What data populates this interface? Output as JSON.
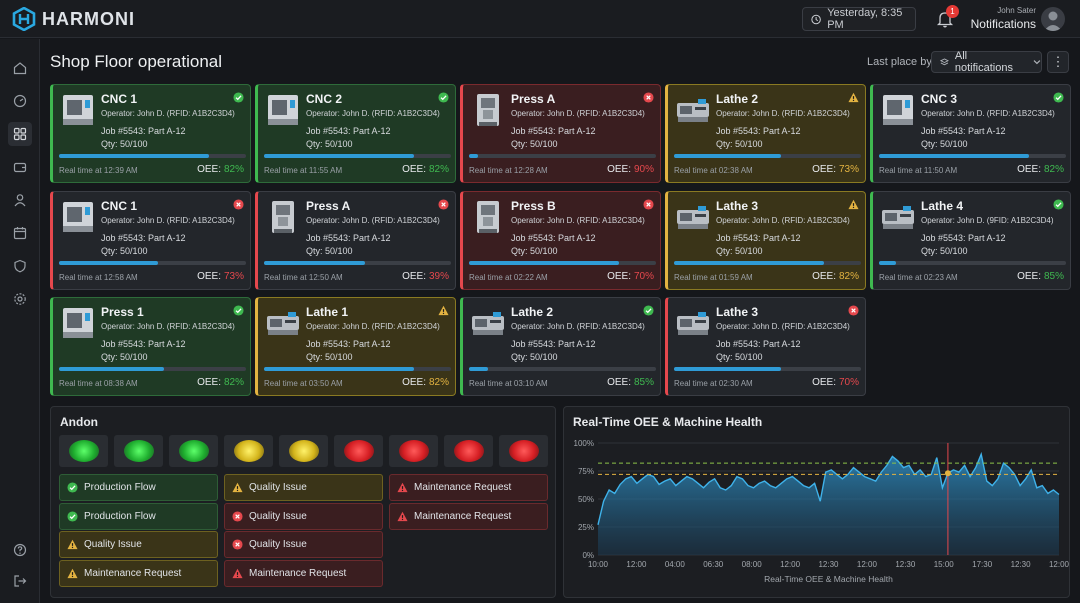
{
  "app": {
    "name": "HARMONI"
  },
  "header": {
    "date_label": "Yesterday, 8:35 PM",
    "notif_count": "1",
    "user_name": "John Sater",
    "notif_label": "Notifications"
  },
  "page": {
    "title": "Shop Floor operational",
    "filter_label": "Last place by",
    "filter_value": "All notifications"
  },
  "colors": {
    "green": "#3fb950",
    "red": "#e5484d",
    "yellow": "#e3b341",
    "accent": "#2f9bd6"
  },
  "machines": [
    {
      "name": "CNC 1",
      "operator": "Operator: John D. (RFID: A1B2C3D4)",
      "job": "Job #5543: Part A-12",
      "qty": "Qty: 50/100",
      "time": "Real time at 12:39 AM",
      "oee_label": "OEE:",
      "oee": "82%",
      "status": "green",
      "icon": "check-icon",
      "progress": 0.8,
      "kind": "cnc"
    },
    {
      "name": "CNC 2",
      "operator": "Operator: John D. (RFID: A1B2C3D4)",
      "job": "Job #5543: Part A-12",
      "qty": "Qty: 50/100",
      "time": "Real time at 11:55 AM",
      "oee_label": "OEE:",
      "oee": "82%",
      "status": "green",
      "icon": "check-icon",
      "progress": 0.8,
      "kind": "cnc"
    },
    {
      "name": "Press A",
      "operator": "Operator: John D. (RFID: A1B2C3D4)",
      "job": "Job #5543: Part A-12",
      "qty": "Qty: 50/100",
      "time": "Real time at 12:28 AM",
      "oee_label": "OEE:",
      "oee": "90%",
      "status": "red",
      "icon": "error-icon",
      "progress": 0.05,
      "kind": "press"
    },
    {
      "name": "Lathe 2",
      "operator": "Operator: John D. (RFID: A1B2C3D4)",
      "job": "Job #5543: Part A-12",
      "qty": "Qty: 50/100",
      "time": "Real time at 02:38 AM",
      "oee_label": "OEE:",
      "oee": "73%",
      "status": "yellow",
      "icon": "warning-icon",
      "progress": 0.57,
      "kind": "lathe"
    },
    {
      "name": "CNC 3",
      "operator": "Operator: John D. (RFID: A1B2C3D4)",
      "job": "Job #5543: Part A-12",
      "qty": "Qty: 50/100",
      "time": "Real time at 11:50 AM",
      "oee_label": "OEE:",
      "oee": "82%",
      "status": "dark-ok",
      "icon": "check-icon",
      "progress": 0.8,
      "kind": "cnc"
    },
    {
      "name": "CNC 1",
      "operator": "Operator: John D. (RFID: A1B2C3D4)",
      "job": "Job #5543: Part A-12",
      "qty": "Qty: 50/100",
      "time": "Real time at 12:58 AM",
      "oee_label": "OEE:",
      "oee": "73%",
      "status": "dark-bad",
      "icon": "error-icon",
      "progress": 0.53,
      "kind": "cnc"
    },
    {
      "name": "Press A",
      "operator": "Operator: John D. (RFID: A1B2C3D4)",
      "job": "Job #5543: Part A-12",
      "qty": "Qty: 50/100",
      "time": "Real time at 12:50 AM",
      "oee_label": "OEE:",
      "oee": "39%",
      "status": "dark-bad",
      "icon": "error-icon",
      "progress": 0.54,
      "kind": "press"
    },
    {
      "name": "Press B",
      "operator": "Operator: John D. (RFID: A1B2C3D4)",
      "job": "Job #5543: Part A-12",
      "qty": "Qty: 50/100",
      "time": "Real time at 02:22 AM",
      "oee_label": "OEE:",
      "oee": "70%",
      "status": "red",
      "icon": "error-icon",
      "progress": 0.8,
      "kind": "press"
    },
    {
      "name": "Lathe 3",
      "operator": "Operator: John D. (RFID: A1B2C3D4)",
      "job": "Job #5543: Part A-12",
      "qty": "Qty: 50/100",
      "time": "Real time at 01:59 AM",
      "oee_label": "OEE:",
      "oee": "82%",
      "status": "yellow",
      "icon": "warning-icon",
      "progress": 0.8,
      "kind": "lathe"
    },
    {
      "name": "Lathe 4",
      "operator": "Operator: John D. (9FID: A1B2C3D4)",
      "job": "Job #5543: Part A-12",
      "qty": "Qty: 50/100",
      "time": "Real time at 02:23 AM",
      "oee_label": "OEE:",
      "oee": "85%",
      "status": "dark-ok",
      "icon": "check-icon",
      "progress": 0.09,
      "kind": "lathe"
    },
    {
      "name": "Press 1",
      "operator": "Operator: John D. (RFID: A1B2C3D4)",
      "job": "Job #5543: Part A-12",
      "qty": "Qty: 50/100",
      "time": "Real time at 08:38 AM",
      "oee_label": "OEE:",
      "oee": "82%",
      "status": "green",
      "icon": "check-icon",
      "progress": 0.56,
      "kind": "cnc"
    },
    {
      "name": "Lathe 1",
      "operator": "Operator: John D. (RFID: A1B2C3D4)",
      "job": "Job #5543: Part A-12",
      "qty": "Qty: 50/100",
      "time": "Real time at 03:50 AM",
      "oee_label": "OEE:",
      "oee": "82%",
      "status": "yellow",
      "icon": "warning-icon",
      "progress": 0.8,
      "kind": "lathe"
    },
    {
      "name": "Lathe 2",
      "operator": "Operator: John D. (RFID: A1B2C3D4)",
      "job": "Job #5543: Part A-12",
      "qty": "Qty: 50/100",
      "time": "Real time at 03:10 AM",
      "oee_label": "OEE:",
      "oee": "85%",
      "status": "dark-ok",
      "icon": "check-icon",
      "progress": 0.1,
      "kind": "lathe"
    },
    {
      "name": "Lathe 3",
      "operator": "Operator: John D. (RFID: A1B2C3D4)",
      "job": "Job #5543: Part A-12",
      "qty": "Qty: 50/100",
      "time": "Real time at 02:30 AM",
      "oee_label": "OEE:",
      "oee": "70%",
      "status": "dark-bad",
      "icon": "error-icon",
      "progress": 0.57,
      "kind": "lathe"
    }
  ],
  "andon": {
    "title": "Andon",
    "lamps": [
      "green",
      "green",
      "green",
      "yellow",
      "yellow",
      "red",
      "red",
      "red",
      "red"
    ],
    "columns": [
      [
        {
          "label": "Production Flow",
          "status": "green",
          "icon": "check-circle-icon"
        },
        {
          "label": "Production Flow",
          "status": "green",
          "icon": "check-circle-icon"
        },
        {
          "label": "Quality Issue",
          "status": "yellow",
          "icon": "warning-icon"
        },
        {
          "label": "Maintenance Request",
          "status": "yellow",
          "icon": "warning-icon"
        }
      ],
      [
        {
          "label": "Quality Issue",
          "status": "yellow",
          "icon": "warning-icon"
        },
        {
          "label": "Quality Issue",
          "status": "red",
          "icon": "error-icon"
        },
        {
          "label": "Quality Issue",
          "status": "red",
          "icon": "error-icon"
        },
        {
          "label": "Maintenance Request",
          "status": "red",
          "icon": "alert-triangle-icon"
        }
      ],
      [
        {
          "label": "Maintenance Request",
          "status": "red",
          "icon": "alert-triangle-icon"
        },
        {
          "label": "Maintenance Request",
          "status": "red",
          "icon": "alert-triangle-icon"
        }
      ]
    ]
  },
  "chart_data": {
    "type": "area",
    "title": "Real-Time OEE & Machine Health",
    "xlabel": "Real-Time OEE & Machine Health",
    "ylabel": "",
    "x_ticks": [
      "10:00",
      "12:00",
      "04:00",
      "06:30",
      "08:00",
      "12:00",
      "12:30",
      "12:00",
      "12:30",
      "15:00",
      "17:30",
      "12:30",
      "12:00"
    ],
    "y_ticks": [
      "0%",
      "25%",
      "50%",
      "75%",
      "100%"
    ],
    "ylim": [
      0,
      100
    ],
    "reference_lines": [
      82,
      72
    ],
    "marker_index": 63,
    "marker_value": 73,
    "series": [
      {
        "values": [
          27,
          48,
          58,
          55,
          63,
          68,
          70,
          64,
          68,
          72,
          70,
          63,
          66,
          68,
          62,
          66,
          70,
          68,
          64,
          60,
          65,
          68,
          60,
          58,
          62,
          70,
          68,
          62,
          60,
          64,
          66,
          62,
          60,
          64,
          68,
          70,
          66,
          62,
          60,
          64,
          48,
          74,
          76,
          72,
          68,
          72,
          78,
          74,
          70,
          68,
          66,
          74,
          80,
          88,
          84,
          78,
          80,
          72,
          76,
          70,
          72,
          87,
          60,
          73,
          76,
          74,
          80,
          70,
          78,
          90,
          66,
          62,
          68,
          82,
          78,
          72,
          62,
          68,
          76,
          60,
          62,
          55,
          58,
          54
        ]
      }
    ]
  },
  "sidebar": {
    "items": [
      "home-icon",
      "dashboard-gauge-icon",
      "grid-icon",
      "wallet-icon",
      "user-icon",
      "calendar-icon",
      "shield-icon",
      "settings-icon"
    ],
    "bottom": [
      "help-icon",
      "logout-icon"
    ]
  }
}
